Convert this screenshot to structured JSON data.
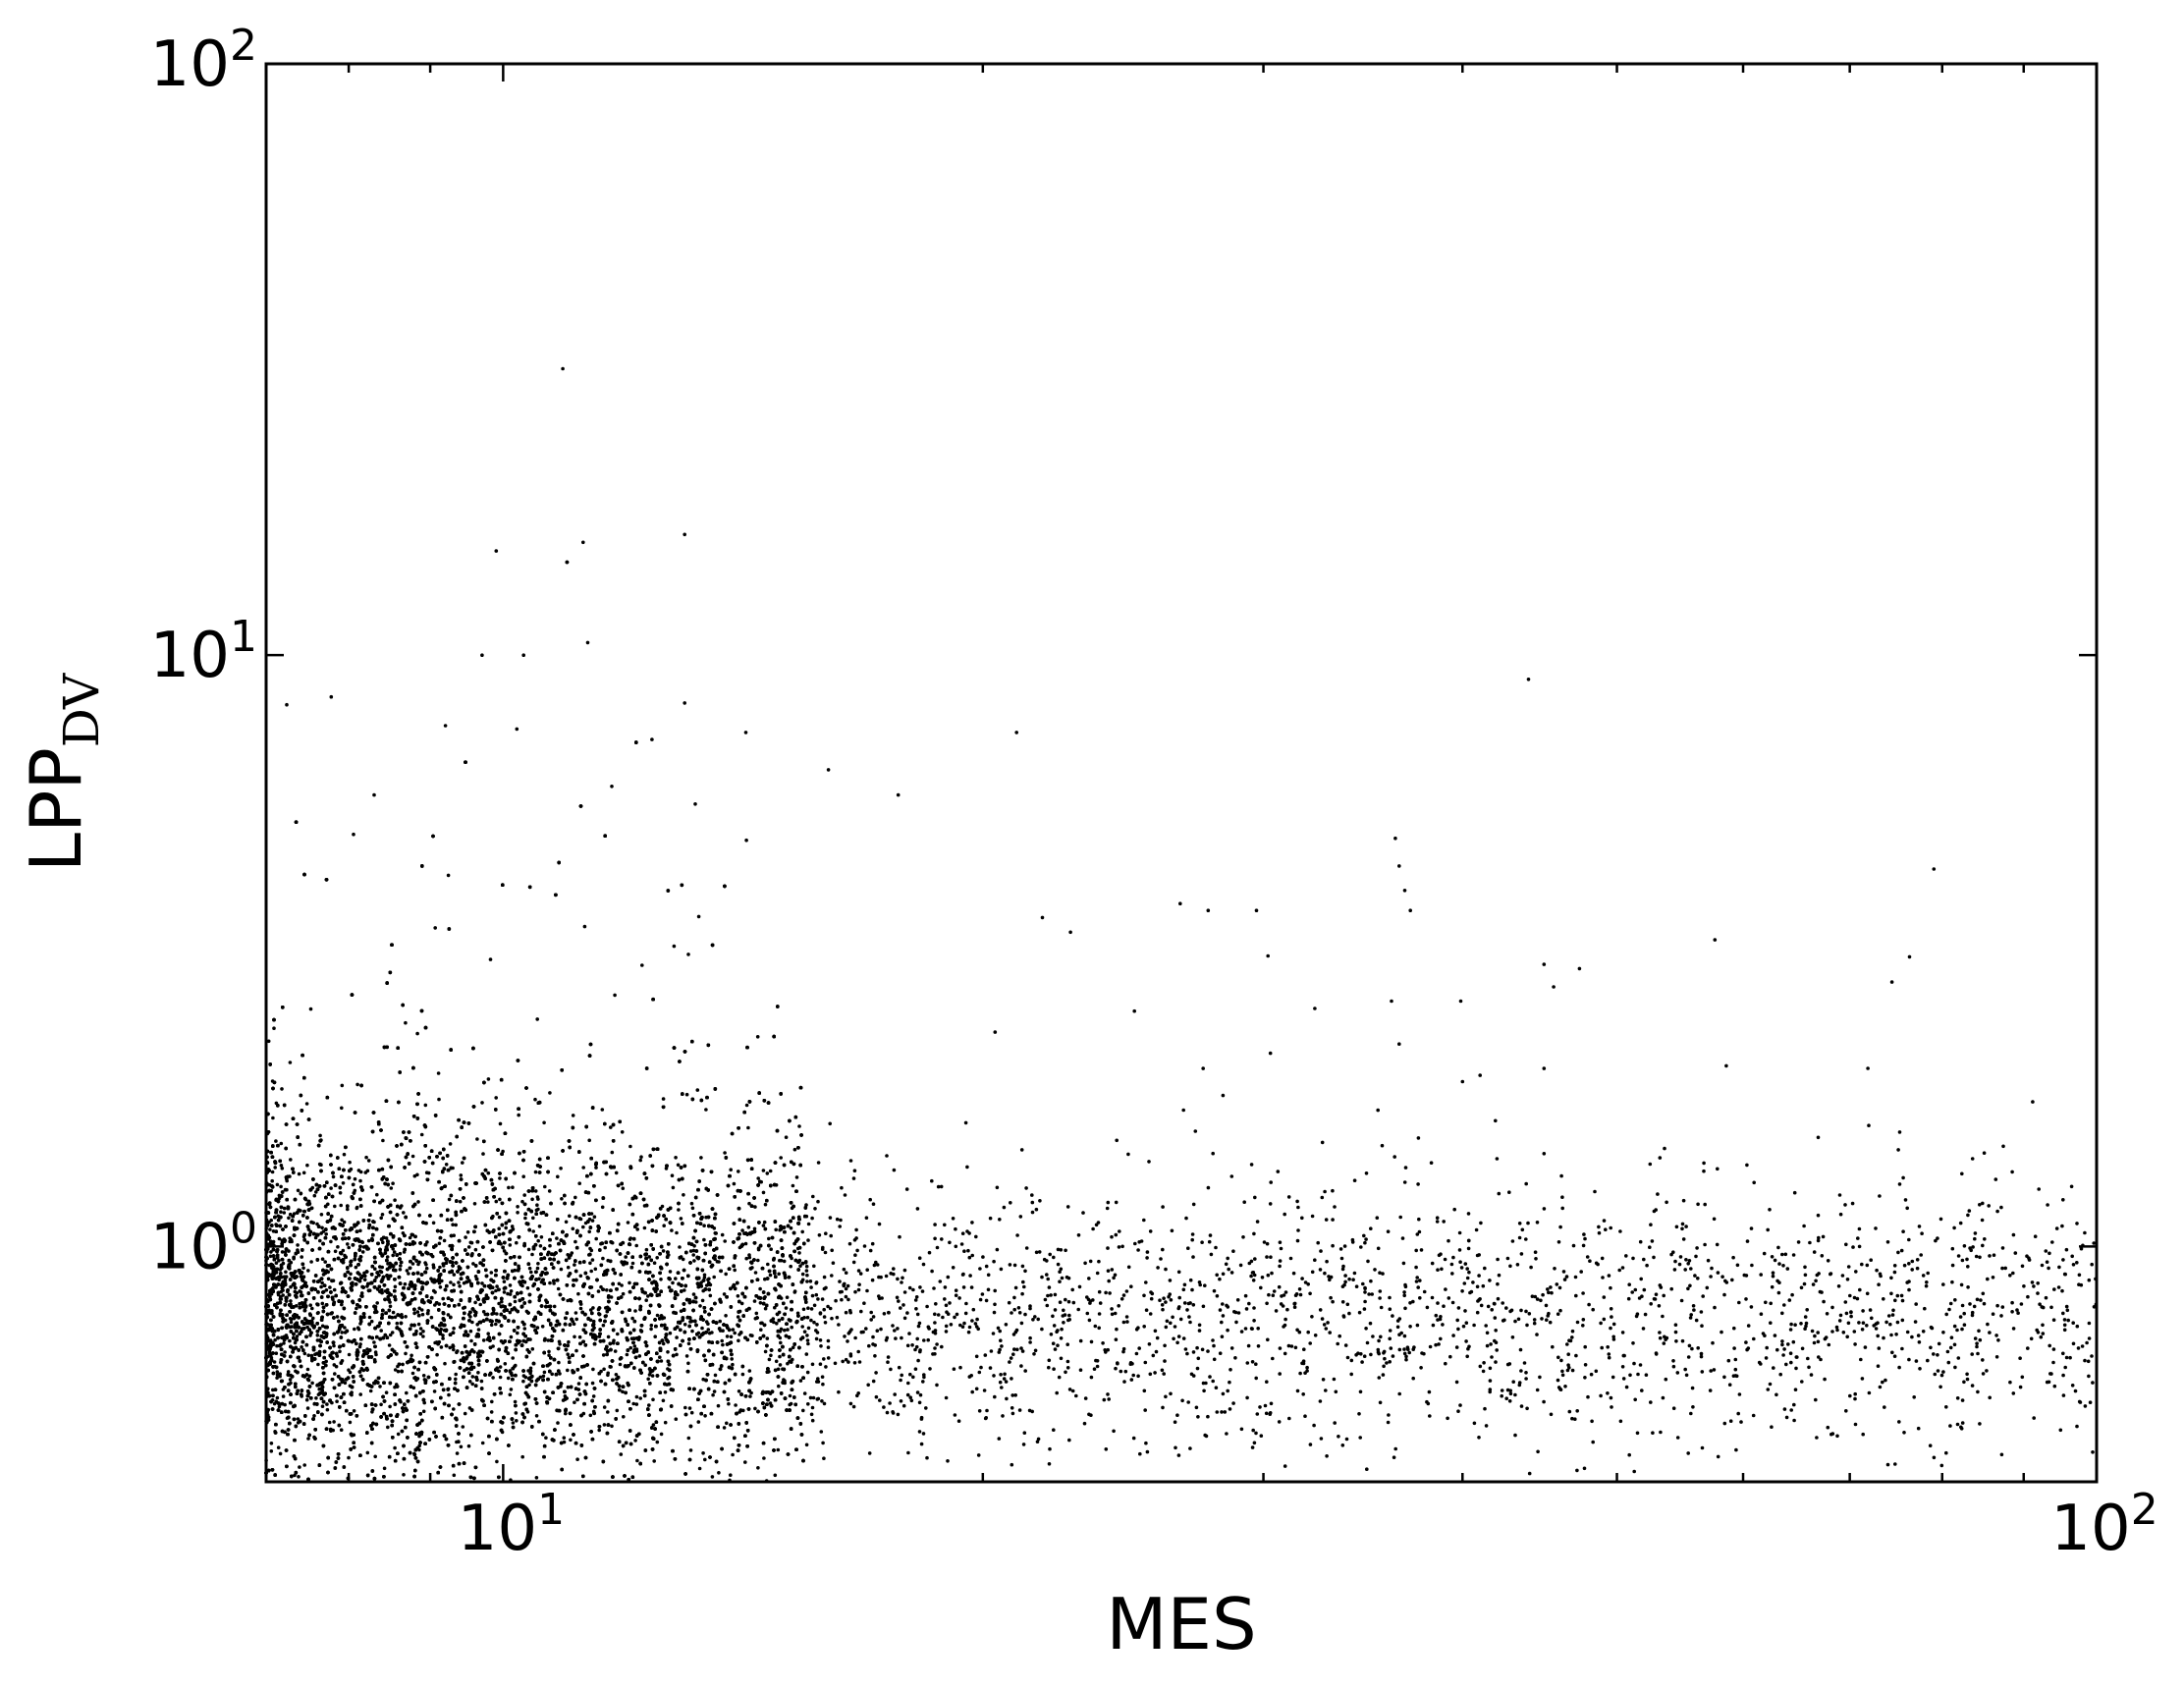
{
  "chart_data": {
    "type": "scatter",
    "title": "",
    "xlabel": "MES",
    "ylabel": "LPP",
    "ylabel_subscript": "DV",
    "x_scale": "log",
    "y_scale": "log",
    "xlim": [
      7.1,
      100
    ],
    "ylim": [
      0.4,
      100
    ],
    "grid": false,
    "legend": "none",
    "point_color": "#000000",
    "x_ticks": [
      {
        "base": "10",
        "exp": "1",
        "value": 10
      },
      {
        "base": "10",
        "exp": "2",
        "value": 100
      }
    ],
    "y_ticks": [
      {
        "base": "10",
        "exp": "0",
        "value": 1
      },
      {
        "base": "10",
        "exp": "1",
        "value": 10
      },
      {
        "base": "10",
        "exp": "2",
        "value": 100
      }
    ],
    "x_minor_ticks": [
      8,
      9,
      20,
      30,
      40,
      50,
      60,
      70,
      80,
      90
    ],
    "series": [
      {
        "points": [
          [
            10.9,
            30.5
          ],
          [
            13.0,
            16.0
          ],
          [
            9.9,
            15.0
          ],
          [
            10.3,
            10.0
          ],
          [
            9.7,
            10.0
          ],
          [
            11.3,
            10.5
          ],
          [
            7.8,
            8.5
          ],
          [
            9.2,
            7.6
          ],
          [
            10.2,
            7.5
          ],
          [
            12.4,
            7.2
          ],
          [
            13.0,
            8.3
          ],
          [
            14.2,
            7.4
          ],
          [
            21.0,
            7.4
          ],
          [
            44.0,
            9.1
          ],
          [
            8.3,
            5.8
          ],
          [
            11.7,
            6.0
          ],
          [
            16.0,
            6.4
          ],
          [
            17.7,
            5.8
          ],
          [
            13.2,
            5.6
          ],
          [
            36.3,
            4.9
          ],
          [
            36.5,
            4.4
          ],
          [
            36.8,
            4.0
          ],
          [
            37.1,
            3.7
          ],
          [
            26.6,
            3.8
          ],
          [
            27.7,
            3.7
          ],
          [
            29.7,
            3.7
          ],
          [
            57.6,
            3.3
          ],
          [
            22.7,
            3.4
          ],
          [
            21.8,
            3.6
          ],
          [
            30.2,
            3.1
          ],
          [
            45.0,
            3.0
          ],
          [
            36.1,
            2.6
          ],
          [
            74.4,
            2.8
          ],
          [
            39.9,
            2.6
          ],
          [
            24.9,
            2.5
          ],
          [
            36.5,
            2.2
          ],
          [
            27.5,
            2.0
          ],
          [
            28.3,
            1.8
          ],
          [
            35.4,
            1.7
          ],
          [
            92.0,
            1.25
          ],
          [
            71.0,
            1.0
          ],
          [
            85.0,
            0.8
          ],
          [
            96.0,
            0.75
          ],
          [
            94.0,
            0.67
          ],
          [
            40.0,
            1.9
          ],
          [
            45.0,
            2.0
          ]
        ]
      }
    ],
    "clusters": [
      {
        "x_from": 7.1,
        "x_to": 15.5,
        "center_y": 0.78,
        "spread_y": 0.14,
        "count": 14000,
        "tail_fraction": 0.06
      },
      {
        "x_from": 15.5,
        "x_to": 100,
        "center_y": 0.76,
        "spread_y": 0.11,
        "count": 2100,
        "tail_fraction": 0.02
      }
    ]
  }
}
